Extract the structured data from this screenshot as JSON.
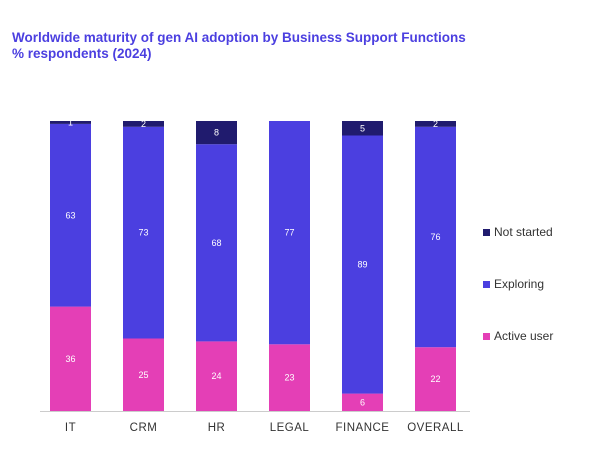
{
  "chart_data": {
    "type": "bar",
    "stacked": true,
    "title": "Worldwide maturity of gen AI adoption by Business Support Functions",
    "subtitle": "% respondents (2024)",
    "categories": [
      "IT",
      "CRM",
      "HR",
      "LEGAL",
      "FINANCE",
      "OVERALL"
    ],
    "series": [
      {
        "name": "Active user",
        "values": [
          36,
          25,
          24,
          23,
          6,
          22
        ],
        "color": "#e43fb6"
      },
      {
        "name": "Exploring",
        "values": [
          63,
          73,
          68,
          77,
          89,
          76
        ],
        "color": "#4b3fe0"
      },
      {
        "name": "Not started",
        "values": [
          1,
          2,
          8,
          0,
          5,
          2
        ],
        "color": "#201b6e"
      }
    ],
    "ylim": [
      0,
      100
    ],
    "grid": false,
    "legend_position": "right",
    "legend_order": [
      "Not started",
      "Exploring",
      "Active user"
    ]
  }
}
